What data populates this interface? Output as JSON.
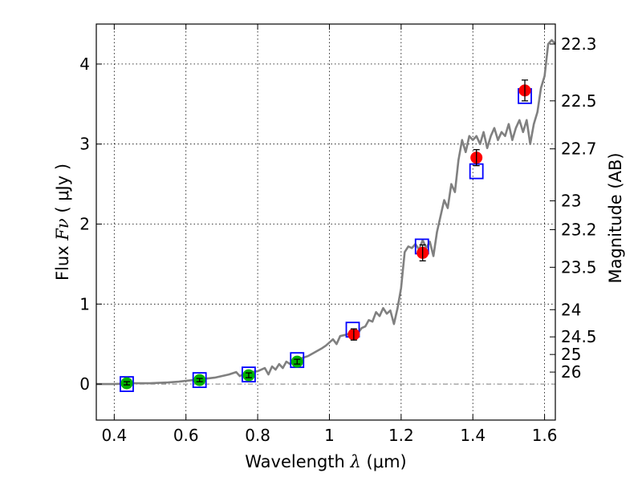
{
  "chart_data": {
    "type": "scatter",
    "xlabel": "Wavelength",
    "xlabel_math": "λ",
    "xlabel_units": "(μm)",
    "ylabel_prefix": "Flux",
    "ylabel_math": "Fν",
    "ylabel_units": "( μJy )",
    "ylabel_right": "Magnitude (AB)",
    "xlim": [
      0.35,
      1.63
    ],
    "ylim": [
      -0.45,
      4.5
    ],
    "grid": true,
    "x_ticks": [
      0.4,
      0.6,
      0.8,
      1.0,
      1.2,
      1.4,
      1.6
    ],
    "x_tick_labels": [
      "0.4",
      "0.6",
      "0.8",
      "1",
      "1.2",
      "1.4",
      "1.6"
    ],
    "y_ticks": [
      0,
      1,
      2,
      3,
      4
    ],
    "y_tick_labels": [
      "0",
      "1",
      "2",
      "3",
      "4"
    ],
    "right_ticks": [
      {
        "flux": 4.25,
        "label": "22.3"
      },
      {
        "flux": 3.54,
        "label": "22.5"
      },
      {
        "flux": 2.94,
        "label": "22.7"
      },
      {
        "flux": 2.29,
        "label": "23"
      },
      {
        "flux": 1.93,
        "label": "23.2"
      },
      {
        "flux": 1.46,
        "label": "23.5"
      },
      {
        "flux": 0.93,
        "label": "24"
      },
      {
        "flux": 0.59,
        "label": "24.5"
      },
      {
        "flux": 0.37,
        "label": "25"
      },
      {
        "flux": 0.15,
        "label": "26"
      }
    ],
    "series": [
      {
        "name": "model spectrum",
        "kind": "line",
        "color": "#808080",
        "x": [
          0.35,
          0.4,
          0.45,
          0.5,
          0.55,
          0.58,
          0.6,
          0.62,
          0.64,
          0.66,
          0.68,
          0.7,
          0.72,
          0.74,
          0.75,
          0.76,
          0.78,
          0.8,
          0.82,
          0.83,
          0.84,
          0.85,
          0.86,
          0.87,
          0.88,
          0.89,
          0.9,
          0.92,
          0.94,
          0.96,
          0.98,
          0.99,
          1.0,
          1.01,
          1.02,
          1.03,
          1.05,
          1.07,
          1.08,
          1.09,
          1.1,
          1.11,
          1.12,
          1.13,
          1.14,
          1.15,
          1.16,
          1.17,
          1.18,
          1.19,
          1.2,
          1.21,
          1.22,
          1.23,
          1.24,
          1.25,
          1.26,
          1.27,
          1.28,
          1.29,
          1.3,
          1.31,
          1.32,
          1.33,
          1.34,
          1.35,
          1.36,
          1.37,
          1.38,
          1.39,
          1.4,
          1.41,
          1.42,
          1.43,
          1.44,
          1.45,
          1.46,
          1.47,
          1.48,
          1.49,
          1.5,
          1.51,
          1.52,
          1.53,
          1.54,
          1.55,
          1.56,
          1.57,
          1.58,
          1.59,
          1.6,
          1.61,
          1.62,
          1.63
        ],
        "y": [
          0.0,
          0.0,
          0.01,
          0.01,
          0.02,
          0.03,
          0.04,
          0.05,
          0.06,
          0.07,
          0.08,
          0.1,
          0.12,
          0.15,
          0.1,
          0.12,
          0.15,
          0.16,
          0.2,
          0.12,
          0.22,
          0.18,
          0.25,
          0.2,
          0.28,
          0.25,
          0.3,
          0.32,
          0.35,
          0.4,
          0.45,
          0.48,
          0.52,
          0.56,
          0.5,
          0.6,
          0.62,
          0.68,
          0.64,
          0.7,
          0.72,
          0.8,
          0.78,
          0.9,
          0.85,
          0.95,
          0.88,
          0.92,
          0.75,
          0.95,
          1.2,
          1.65,
          1.72,
          1.7,
          1.75,
          1.68,
          1.8,
          1.7,
          1.78,
          1.6,
          1.9,
          2.1,
          2.3,
          2.2,
          2.5,
          2.4,
          2.8,
          3.05,
          2.9,
          3.1,
          3.05,
          3.1,
          3.0,
          3.15,
          2.95,
          3.1,
          3.2,
          3.05,
          3.15,
          3.1,
          3.25,
          3.05,
          3.2,
          3.3,
          3.15,
          3.3,
          3.0,
          3.25,
          3.4,
          3.7,
          3.85,
          4.25,
          4.3,
          4.25
        ]
      },
      {
        "name": "model photometry",
        "kind": "open-square",
        "color": "#0000ff",
        "x": [
          0.435,
          0.638,
          0.775,
          0.91,
          1.065,
          1.258,
          1.41,
          1.545
        ],
        "y": [
          0.0,
          0.05,
          0.12,
          0.3,
          0.68,
          1.72,
          2.66,
          3.6
        ]
      },
      {
        "name": "observed flux (optical)",
        "kind": "filled-circle",
        "color": "#00b200",
        "x": [
          0.435,
          0.638,
          0.775,
          0.91
        ],
        "y": [
          0.01,
          0.05,
          0.11,
          0.28
        ],
        "yerr": [
          0.02,
          0.02,
          0.03,
          0.03
        ]
      },
      {
        "name": "observed flux (near-infrared)",
        "kind": "filled-circle",
        "color": "#ff0000",
        "x": [
          1.068,
          1.26,
          1.41,
          1.545
        ],
        "y": [
          0.62,
          1.64,
          2.83,
          3.67
        ],
        "yerr": [
          0.07,
          0.1,
          0.1,
          0.13
        ]
      }
    ],
    "reference_lines": [
      {
        "kind": "horizontal",
        "y": 0,
        "style": "dash-dot",
        "color": "#808080"
      }
    ]
  }
}
